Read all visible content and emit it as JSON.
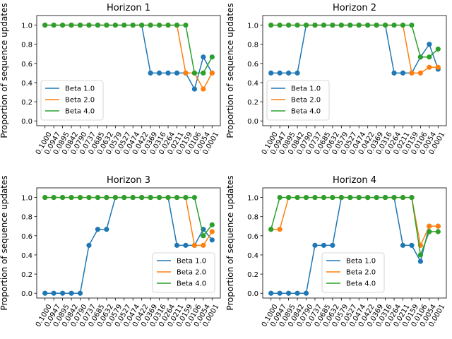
{
  "chart_data": [
    {
      "type": "line",
      "title": "Horizon 1",
      "ylabel": "Proportion of sequence updates",
      "xlabel": "",
      "categories": [
        "0.1000",
        "0.0947",
        "0.0895",
        "0.0842",
        "0.0790",
        "0.0737",
        "0.0685",
        "0.0632",
        "0.0579",
        "0.0527",
        "0.0474",
        "0.0422",
        "0.0369",
        "0.0316",
        "0.0264",
        "0.0211",
        "0.0159",
        "0.0106",
        "0.0054",
        "0.0001"
      ],
      "yticks": [
        "0.0",
        "0.2",
        "0.4",
        "0.6",
        "0.8",
        "1.0"
      ],
      "ylim": [
        -0.05,
        1.1
      ],
      "legend_position": "lower-left",
      "series": [
        {
          "name": "Beta 1.0",
          "color": "#1f77b4",
          "values": [
            1,
            1,
            1,
            1,
            1,
            1,
            1,
            1,
            1,
            1,
            1,
            1,
            0.5,
            0.5,
            0.5,
            0.5,
            0.5,
            0.333,
            0.667,
            0.5
          ]
        },
        {
          "name": "Beta 2.0",
          "color": "#ff7f0e",
          "values": [
            1,
            1,
            1,
            1,
            1,
            1,
            1,
            1,
            1,
            1,
            1,
            1,
            1,
            1,
            1,
            1,
            0.5,
            0.5,
            0.333,
            0.5
          ]
        },
        {
          "name": "Beta 4.0",
          "color": "#2ca02c",
          "values": [
            1,
            1,
            1,
            1,
            1,
            1,
            1,
            1,
            1,
            1,
            1,
            1,
            1,
            1,
            1,
            1,
            1,
            0.5,
            0.5,
            0.667
          ]
        }
      ]
    },
    {
      "type": "line",
      "title": "Horizon 2",
      "ylabel": "Proportion of sequence updates",
      "xlabel": "",
      "categories": [
        "0.1000",
        "0.0947",
        "0.0895",
        "0.0842",
        "0.0790",
        "0.0737",
        "0.0685",
        "0.0632",
        "0.0579",
        "0.0527",
        "0.0474",
        "0.0422",
        "0.0369",
        "0.0316",
        "0.0264",
        "0.0211",
        "0.0159",
        "0.0106",
        "0.0054",
        "0.0001"
      ],
      "yticks": [
        "0.0",
        "0.2",
        "0.4",
        "0.6",
        "0.8",
        "1.0"
      ],
      "ylim": [
        -0.05,
        1.1
      ],
      "legend_position": "lower-left",
      "series": [
        {
          "name": "Beta 1.0",
          "color": "#1f77b4",
          "values": [
            0.5,
            0.5,
            0.5,
            0.5,
            1,
            1,
            1,
            1,
            1,
            1,
            1,
            1,
            1,
            1,
            0.5,
            0.5,
            0.5,
            0.667,
            0.8,
            0.54
          ]
        },
        {
          "name": "Beta 2.0",
          "color": "#ff7f0e",
          "values": [
            1,
            1,
            1,
            1,
            1,
            1,
            1,
            1,
            1,
            1,
            1,
            1,
            1,
            1,
            1,
            1,
            0.5,
            0.5,
            0.56,
            0.56
          ]
        },
        {
          "name": "Beta 4.0",
          "color": "#2ca02c",
          "values": [
            1,
            1,
            1,
            1,
            1,
            1,
            1,
            1,
            1,
            1,
            1,
            1,
            1,
            1,
            1,
            1,
            1,
            0.667,
            0.667,
            0.75
          ]
        }
      ]
    },
    {
      "type": "line",
      "title": "Horizon 3",
      "ylabel": "Proportion of sequence updates",
      "xlabel": "",
      "categories": [
        "0.1000",
        "0.0947",
        "0.0895",
        "0.0842",
        "0.0790",
        "0.0737",
        "0.0685",
        "0.0632",
        "0.0579",
        "0.0527",
        "0.0474",
        "0.0422",
        "0.0369",
        "0.0316",
        "0.0264",
        "0.0211",
        "0.0159",
        "0.0106",
        "0.0054",
        "0.0001"
      ],
      "yticks": [
        "0.0",
        "0.2",
        "0.4",
        "0.6",
        "0.8",
        "1.0"
      ],
      "ylim": [
        -0.05,
        1.1
      ],
      "legend_position": "lower-right",
      "series": [
        {
          "name": "Beta 1.0",
          "color": "#1f77b4",
          "values": [
            0,
            0,
            0,
            0,
            0,
            0.5,
            0.667,
            0.667,
            1,
            1,
            1,
            1,
            1,
            1,
            1,
            0.5,
            0.5,
            0.5,
            0.667,
            0.556
          ]
        },
        {
          "name": "Beta 2.0",
          "color": "#ff7f0e",
          "values": [
            1,
            1,
            1,
            1,
            1,
            1,
            1,
            1,
            1,
            1,
            1,
            1,
            1,
            1,
            1,
            1,
            1,
            0.5,
            0.5,
            0.643
          ]
        },
        {
          "name": "Beta 4.0",
          "color": "#2ca02c",
          "values": [
            1,
            1,
            1,
            1,
            1,
            1,
            1,
            1,
            1,
            1,
            1,
            1,
            1,
            1,
            1,
            1,
            1,
            1,
            0.6,
            0.714
          ]
        }
      ]
    },
    {
      "type": "line",
      "title": "Horizon 4",
      "ylabel": "Proportion of sequence updates",
      "xlabel": "",
      "categories": [
        "0.1000",
        "0.0947",
        "0.0895",
        "0.0842",
        "0.0790",
        "0.0737",
        "0.0685",
        "0.0632",
        "0.0579",
        "0.0527",
        "0.0474",
        "0.0422",
        "0.0369",
        "0.0316",
        "0.0264",
        "0.0211",
        "0.0159",
        "0.0106",
        "0.0054",
        "0.0001"
      ],
      "yticks": [
        "0.0",
        "0.2",
        "0.4",
        "0.6",
        "0.8",
        "1.0"
      ],
      "ylim": [
        -0.05,
        1.1
      ],
      "legend_position": "lower-center",
      "series": [
        {
          "name": "Beta 1.0",
          "color": "#1f77b4",
          "values": [
            0,
            0,
            0,
            0,
            0,
            0.5,
            0.5,
            0.5,
            1,
            1,
            1,
            1,
            1,
            1,
            1,
            0.5,
            0.5,
            0.333,
            0.7,
            0.7
          ]
        },
        {
          "name": "Beta 2.0",
          "color": "#ff7f0e",
          "values": [
            0.667,
            0.667,
            1,
            1,
            1,
            1,
            1,
            1,
            1,
            1,
            1,
            1,
            1,
            1,
            1,
            1,
            1,
            0.5,
            0.7,
            0.7
          ]
        },
        {
          "name": "Beta 4.0",
          "color": "#2ca02c",
          "values": [
            0.667,
            1,
            1,
            1,
            1,
            1,
            1,
            1,
            1,
            1,
            1,
            1,
            1,
            1,
            1,
            1,
            1,
            0.4,
            0.643,
            0.643
          ]
        }
      ]
    }
  ]
}
